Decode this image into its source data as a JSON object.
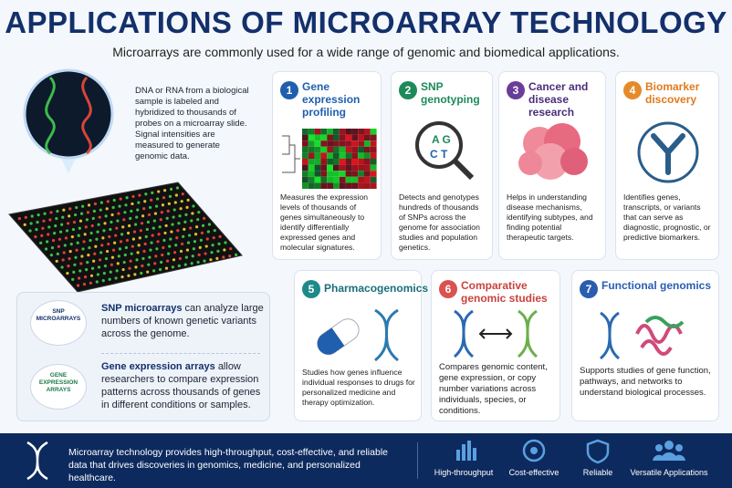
{
  "header": {
    "title": "APPLICATIONS OF MICROARRAY TECHNOLOGY",
    "subtitle": "Microarrays are commonly used for a wide range of genomic and biomedical applications."
  },
  "intro": "DNA or RNA from a biological sample is labeled and hybridized to thousands of probes on a microarray slide. Signal intensities are measured to generate genomic data.",
  "array_types": [
    {
      "badge": "SNP MICROARRAYS",
      "name": "SNP microarrays",
      "text": "can analyze large numbers of known genetic variants across the genome."
    },
    {
      "badge": "GENE EXPRESSION ARRAYS",
      "name": "Gene expression arrays",
      "text": "allow researchers to compare expression patterns across thousands of genes in different conditions or samples."
    }
  ],
  "applications": [
    {
      "number": 1,
      "title": "Gene expression profiling",
      "description": "Measures the expression levels of thousands of genes simultaneously to identify differentially expressed genes and molecular signatures."
    },
    {
      "number": 2,
      "title": "SNP genotyping",
      "description": "Detects and genotypes hundreds of thousands of SNPs across the genome for association studies and population genetics."
    },
    {
      "number": 3,
      "title": "Cancer and disease research",
      "description": "Helps in understanding disease mechanisms, identifying subtypes, and finding potential therapeutic targets."
    },
    {
      "number": 4,
      "title": "Biomarker discovery",
      "description": "Identifies genes, transcripts, or variants that can serve as diagnostic, prognostic, or predictive biomarkers."
    },
    {
      "number": 5,
      "title": "Pharmacogenomics",
      "description": "Studies how genes influence individual responses to drugs for personalized medicine and therapy optimization."
    },
    {
      "number": 6,
      "title": "Comparative genomic studies",
      "description": "Compares genomic content, gene expression, or copy number variations across individuals, species, or conditions."
    },
    {
      "number": 7,
      "title": "Functional genomics",
      "description": "Supports studies of gene function, pathways, and networks to understand biological processes."
    }
  ],
  "footer": {
    "text": "Microarray technology provides high-throughput, cost-effective, and reliable data that drives discoveries in genomics, medicine, and personalized healthcare.",
    "features": [
      "High-throughput",
      "Cost-effective",
      "Reliable",
      "Versatile Applications"
    ]
  }
}
